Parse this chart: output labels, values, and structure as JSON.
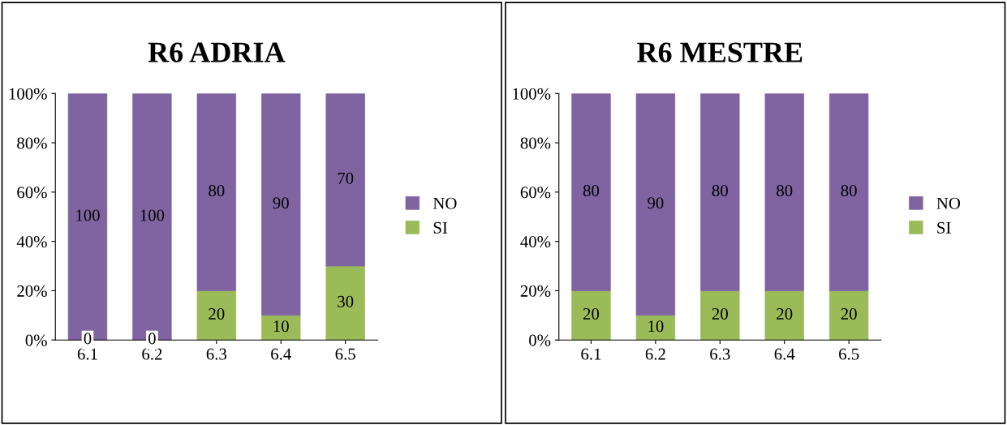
{
  "chart_data": [
    {
      "type": "bar",
      "title": "R6 ADRIA",
      "stacked": true,
      "data_labels": true,
      "legend": "right",
      "grid": false,
      "categories": [
        "6.1",
        "6.2",
        "6.3",
        "6.4",
        "6.5"
      ],
      "ylim": [
        0,
        100
      ],
      "yticks": [
        {
          "value": 0,
          "label": "0%"
        },
        {
          "value": 20,
          "label": "20%"
        },
        {
          "value": 40,
          "label": "40%"
        },
        {
          "value": 60,
          "label": "60%"
        },
        {
          "value": 80,
          "label": "80%"
        },
        {
          "value": 100,
          "label": "100%"
        }
      ],
      "series": [
        {
          "name": "SI",
          "color": "#9bbb59",
          "values": [
            0,
            0,
            20,
            10,
            30
          ]
        },
        {
          "name": "NO",
          "color": "#8064a2",
          "values": [
            100,
            100,
            80,
            90,
            70
          ]
        }
      ]
    },
    {
      "type": "bar",
      "title": "R6 MESTRE",
      "stacked": true,
      "data_labels": true,
      "legend": "right",
      "grid": false,
      "categories": [
        "6.1",
        "6.2",
        "6.3",
        "6.4",
        "6.5"
      ],
      "ylim": [
        0,
        100
      ],
      "yticks": [
        {
          "value": 0,
          "label": "0%"
        },
        {
          "value": 20,
          "label": "20%"
        },
        {
          "value": 40,
          "label": "40%"
        },
        {
          "value": 60,
          "label": "60%"
        },
        {
          "value": 80,
          "label": "80%"
        },
        {
          "value": 100,
          "label": "100%"
        }
      ],
      "series": [
        {
          "name": "SI",
          "color": "#9bbb59",
          "values": [
            20,
            10,
            20,
            20,
            20
          ]
        },
        {
          "name": "NO",
          "color": "#8064a2",
          "values": [
            80,
            90,
            80,
            80,
            80
          ]
        }
      ]
    }
  ]
}
